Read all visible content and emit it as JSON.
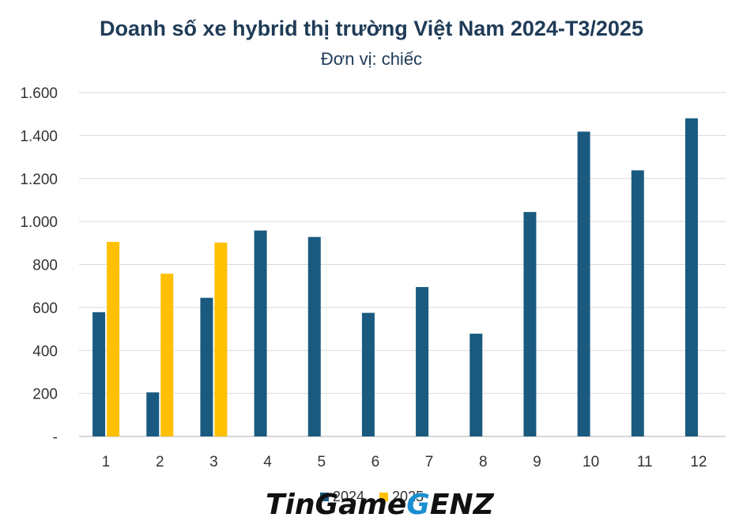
{
  "chart_data": {
    "type": "bar",
    "title": "Doanh số xe hybrid thị trường Việt Nam 2024-T3/2025",
    "subtitle": "Đơn vị: chiếc",
    "categories": [
      "1",
      "2",
      "3",
      "4",
      "5",
      "6",
      "7",
      "8",
      "9",
      "10",
      "11",
      "12"
    ],
    "series": [
      {
        "name": "2024",
        "color": "#1a5a80",
        "values": [
          578,
          205,
          645,
          958,
          928,
          575,
          695,
          478,
          1044,
          1418,
          1238,
          1480
        ]
      },
      {
        "name": "2025",
        "color": "#ffc000",
        "values": [
          905,
          757,
          902,
          null,
          null,
          null,
          null,
          null,
          null,
          null,
          null,
          null
        ]
      }
    ],
    "ylim": [
      0,
      1600
    ],
    "yticks": [
      {
        "value": 0,
        "label": "-"
      },
      {
        "value": 200,
        "label": "200"
      },
      {
        "value": 400,
        "label": "400"
      },
      {
        "value": 600,
        "label": "600"
      },
      {
        "value": 800,
        "label": "800"
      },
      {
        "value": 1000,
        "label": "1.000"
      },
      {
        "value": 1200,
        "label": "1.200"
      },
      {
        "value": 1400,
        "label": "1.400"
      },
      {
        "value": 1600,
        "label": "1.600"
      }
    ],
    "grid": true,
    "legend": "bottom"
  },
  "watermark": {
    "text_left": "TinGame",
    "text_g": "G",
    "text_right": "ENZ",
    "g_color": "#1a8fd1"
  }
}
